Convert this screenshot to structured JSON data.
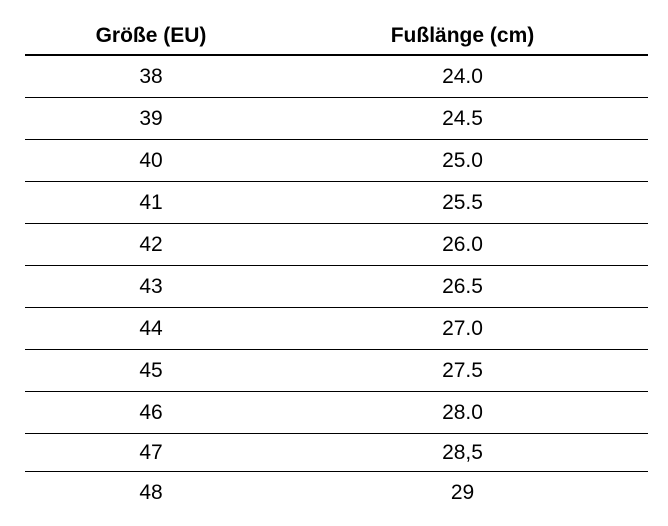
{
  "table": {
    "header": [
      "Größe (EU)",
      "Fußlänge (cm)"
    ],
    "rows": [
      [
        "38",
        "24.0"
      ],
      [
        "39",
        "24.5"
      ],
      [
        "40",
        "25.0"
      ],
      [
        "41",
        "25.5"
      ],
      [
        "42",
        "26.0"
      ],
      [
        "43",
        "26.5"
      ],
      [
        "44",
        "27.0"
      ],
      [
        "45",
        "27.5"
      ],
      [
        "46",
        "28.0"
      ],
      [
        "47",
        "28,5"
      ],
      [
        "48",
        "29"
      ]
    ]
  }
}
